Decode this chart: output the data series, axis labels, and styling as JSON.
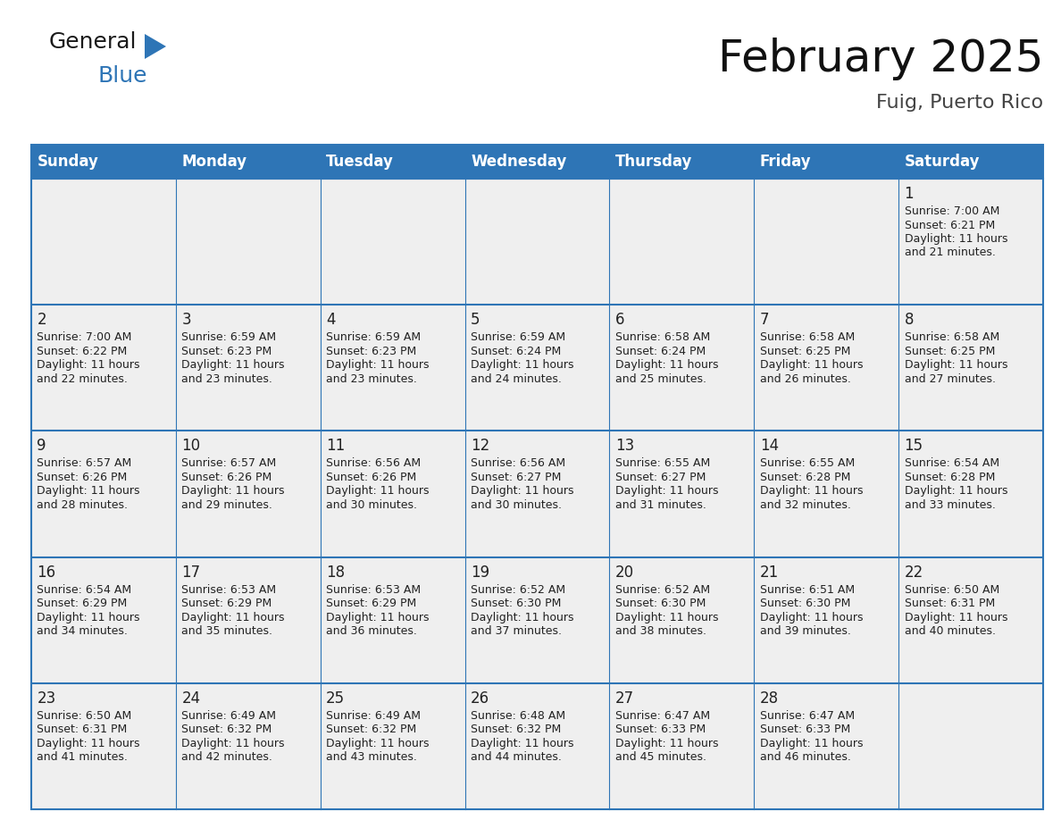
{
  "title": "February 2025",
  "subtitle": "Fuig, Puerto Rico",
  "header_bg_color": "#2E75B6",
  "header_text_color": "#FFFFFF",
  "cell_bg_color": "#EFEFEF",
  "border_color": "#2E75B6",
  "text_color": "#222222",
  "days_of_week": [
    "Sunday",
    "Monday",
    "Tuesday",
    "Wednesday",
    "Thursday",
    "Friday",
    "Saturday"
  ],
  "weeks": [
    [
      {
        "day": null,
        "sunrise": null,
        "sunset": null,
        "daylight": null
      },
      {
        "day": null,
        "sunrise": null,
        "sunset": null,
        "daylight": null
      },
      {
        "day": null,
        "sunrise": null,
        "sunset": null,
        "daylight": null
      },
      {
        "day": null,
        "sunrise": null,
        "sunset": null,
        "daylight": null
      },
      {
        "day": null,
        "sunrise": null,
        "sunset": null,
        "daylight": null
      },
      {
        "day": null,
        "sunrise": null,
        "sunset": null,
        "daylight": null
      },
      {
        "day": 1,
        "sunrise": "7:00 AM",
        "sunset": "6:21 PM",
        "daylight_line1": "Daylight: 11 hours",
        "daylight_line2": "and 21 minutes."
      }
    ],
    [
      {
        "day": 2,
        "sunrise": "7:00 AM",
        "sunset": "6:22 PM",
        "daylight_line1": "Daylight: 11 hours",
        "daylight_line2": "and 22 minutes."
      },
      {
        "day": 3,
        "sunrise": "6:59 AM",
        "sunset": "6:23 PM",
        "daylight_line1": "Daylight: 11 hours",
        "daylight_line2": "and 23 minutes."
      },
      {
        "day": 4,
        "sunrise": "6:59 AM",
        "sunset": "6:23 PM",
        "daylight_line1": "Daylight: 11 hours",
        "daylight_line2": "and 23 minutes."
      },
      {
        "day": 5,
        "sunrise": "6:59 AM",
        "sunset": "6:24 PM",
        "daylight_line1": "Daylight: 11 hours",
        "daylight_line2": "and 24 minutes."
      },
      {
        "day": 6,
        "sunrise": "6:58 AM",
        "sunset": "6:24 PM",
        "daylight_line1": "Daylight: 11 hours",
        "daylight_line2": "and 25 minutes."
      },
      {
        "day": 7,
        "sunrise": "6:58 AM",
        "sunset": "6:25 PM",
        "daylight_line1": "Daylight: 11 hours",
        "daylight_line2": "and 26 minutes."
      },
      {
        "day": 8,
        "sunrise": "6:58 AM",
        "sunset": "6:25 PM",
        "daylight_line1": "Daylight: 11 hours",
        "daylight_line2": "and 27 minutes."
      }
    ],
    [
      {
        "day": 9,
        "sunrise": "6:57 AM",
        "sunset": "6:26 PM",
        "daylight_line1": "Daylight: 11 hours",
        "daylight_line2": "and 28 minutes."
      },
      {
        "day": 10,
        "sunrise": "6:57 AM",
        "sunset": "6:26 PM",
        "daylight_line1": "Daylight: 11 hours",
        "daylight_line2": "and 29 minutes."
      },
      {
        "day": 11,
        "sunrise": "6:56 AM",
        "sunset": "6:26 PM",
        "daylight_line1": "Daylight: 11 hours",
        "daylight_line2": "and 30 minutes."
      },
      {
        "day": 12,
        "sunrise": "6:56 AM",
        "sunset": "6:27 PM",
        "daylight_line1": "Daylight: 11 hours",
        "daylight_line2": "and 30 minutes."
      },
      {
        "day": 13,
        "sunrise": "6:55 AM",
        "sunset": "6:27 PM",
        "daylight_line1": "Daylight: 11 hours",
        "daylight_line2": "and 31 minutes."
      },
      {
        "day": 14,
        "sunrise": "6:55 AM",
        "sunset": "6:28 PM",
        "daylight_line1": "Daylight: 11 hours",
        "daylight_line2": "and 32 minutes."
      },
      {
        "day": 15,
        "sunrise": "6:54 AM",
        "sunset": "6:28 PM",
        "daylight_line1": "Daylight: 11 hours",
        "daylight_line2": "and 33 minutes."
      }
    ],
    [
      {
        "day": 16,
        "sunrise": "6:54 AM",
        "sunset": "6:29 PM",
        "daylight_line1": "Daylight: 11 hours",
        "daylight_line2": "and 34 minutes."
      },
      {
        "day": 17,
        "sunrise": "6:53 AM",
        "sunset": "6:29 PM",
        "daylight_line1": "Daylight: 11 hours",
        "daylight_line2": "and 35 minutes."
      },
      {
        "day": 18,
        "sunrise": "6:53 AM",
        "sunset": "6:29 PM",
        "daylight_line1": "Daylight: 11 hours",
        "daylight_line2": "and 36 minutes."
      },
      {
        "day": 19,
        "sunrise": "6:52 AM",
        "sunset": "6:30 PM",
        "daylight_line1": "Daylight: 11 hours",
        "daylight_line2": "and 37 minutes."
      },
      {
        "day": 20,
        "sunrise": "6:52 AM",
        "sunset": "6:30 PM",
        "daylight_line1": "Daylight: 11 hours",
        "daylight_line2": "and 38 minutes."
      },
      {
        "day": 21,
        "sunrise": "6:51 AM",
        "sunset": "6:30 PM",
        "daylight_line1": "Daylight: 11 hours",
        "daylight_line2": "and 39 minutes."
      },
      {
        "day": 22,
        "sunrise": "6:50 AM",
        "sunset": "6:31 PM",
        "daylight_line1": "Daylight: 11 hours",
        "daylight_line2": "and 40 minutes."
      }
    ],
    [
      {
        "day": 23,
        "sunrise": "6:50 AM",
        "sunset": "6:31 PM",
        "daylight_line1": "Daylight: 11 hours",
        "daylight_line2": "and 41 minutes."
      },
      {
        "day": 24,
        "sunrise": "6:49 AM",
        "sunset": "6:32 PM",
        "daylight_line1": "Daylight: 11 hours",
        "daylight_line2": "and 42 minutes."
      },
      {
        "day": 25,
        "sunrise": "6:49 AM",
        "sunset": "6:32 PM",
        "daylight_line1": "Daylight: 11 hours",
        "daylight_line2": "and 43 minutes."
      },
      {
        "day": 26,
        "sunrise": "6:48 AM",
        "sunset": "6:32 PM",
        "daylight_line1": "Daylight: 11 hours",
        "daylight_line2": "and 44 minutes."
      },
      {
        "day": 27,
        "sunrise": "6:47 AM",
        "sunset": "6:33 PM",
        "daylight_line1": "Daylight: 11 hours",
        "daylight_line2": "and 45 minutes."
      },
      {
        "day": 28,
        "sunrise": "6:47 AM",
        "sunset": "6:33 PM",
        "daylight_line1": "Daylight: 11 hours",
        "daylight_line2": "and 46 minutes."
      },
      {
        "day": null,
        "sunrise": null,
        "sunset": null,
        "daylight_line1": null,
        "daylight_line2": null
      }
    ]
  ],
  "logo_color_general": "#1a1a1a",
  "logo_color_blue": "#2E75B6",
  "logo_triangle_color": "#2E75B6",
  "title_fontsize": 36,
  "subtitle_fontsize": 16,
  "header_fontsize": 12,
  "day_num_fontsize": 12,
  "cell_text_fontsize": 9
}
